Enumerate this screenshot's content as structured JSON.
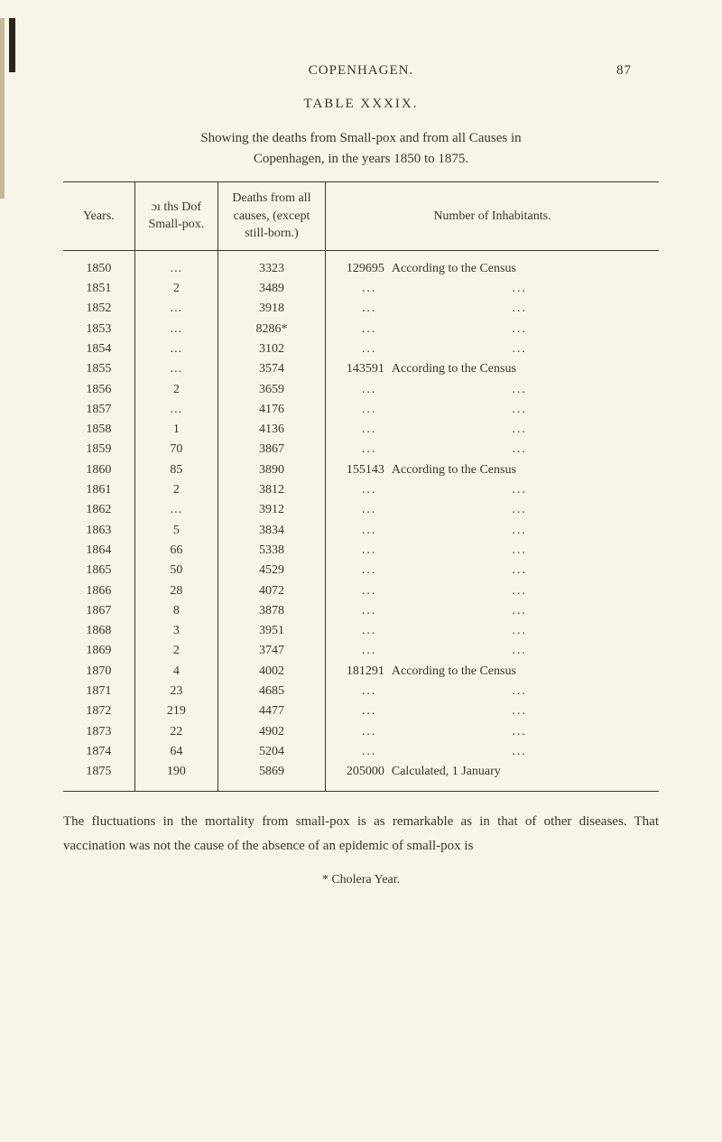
{
  "header": {
    "title": "COPENHAGEN.",
    "pageNumber": "87"
  },
  "tableTitle": "TABLE XXXIX.",
  "description": {
    "line1": "Showing the deaths from Small-pox and from all Causes in",
    "line2": "Copenhagen, in the years 1850 to 1875."
  },
  "columns": {
    "years": "Years.",
    "deathsSmallpox": "ɔı ths Dof Small-pox.",
    "deathsAll": "Deaths from all causes, (except still-born.)",
    "inhabitants": "Number of Inhabitants."
  },
  "rows": [
    {
      "year": "1850",
      "sp": "...",
      "all": "3323",
      "inhab_num": "129695",
      "inhab_text": "According to the Census"
    },
    {
      "year": "1851",
      "sp": "2",
      "all": "3489",
      "inhab_num": "",
      "inhab_text": "dots"
    },
    {
      "year": "1852",
      "sp": "...",
      "all": "3918",
      "inhab_num": "",
      "inhab_text": "dots"
    },
    {
      "year": "1853",
      "sp": "...",
      "all": "8286*",
      "inhab_num": "",
      "inhab_text": "dots"
    },
    {
      "year": "1854",
      "sp": "...",
      "all": "3102",
      "inhab_num": "",
      "inhab_text": "dots"
    },
    {
      "year": "1855",
      "sp": "...",
      "all": "3574",
      "inhab_num": "143591",
      "inhab_text": "According to the Census"
    },
    {
      "year": "1856",
      "sp": "2",
      "all": "3659",
      "inhab_num": "",
      "inhab_text": "dots"
    },
    {
      "year": "1857",
      "sp": "...",
      "all": "4176",
      "inhab_num": "",
      "inhab_text": "dots"
    },
    {
      "year": "1858",
      "sp": "1",
      "all": "4136",
      "inhab_num": "",
      "inhab_text": "dots"
    },
    {
      "year": "1859",
      "sp": "70",
      "all": "3867",
      "inhab_num": "",
      "inhab_text": "dots"
    },
    {
      "year": "1860",
      "sp": "85",
      "all": "3890",
      "inhab_num": "155143",
      "inhab_text": "According to the Census"
    },
    {
      "year": "1861",
      "sp": "2",
      "all": "3812",
      "inhab_num": "",
      "inhab_text": "dots"
    },
    {
      "year": "1862",
      "sp": "...",
      "all": "3912",
      "inhab_num": "",
      "inhab_text": "dots"
    },
    {
      "year": "1863",
      "sp": "5",
      "all": "3834",
      "inhab_num": "",
      "inhab_text": "dots"
    },
    {
      "year": "1864",
      "sp": "66",
      "all": "5338",
      "inhab_num": "",
      "inhab_text": "dots"
    },
    {
      "year": "1865",
      "sp": "50",
      "all": "4529",
      "inhab_num": "",
      "inhab_text": "dots"
    },
    {
      "year": "1866",
      "sp": "28",
      "all": "4072",
      "inhab_num": "",
      "inhab_text": "dots"
    },
    {
      "year": "1867",
      "sp": "8",
      "all": "3878",
      "inhab_num": "",
      "inhab_text": "dots"
    },
    {
      "year": "1868",
      "sp": "3",
      "all": "3951",
      "inhab_num": "",
      "inhab_text": "dots"
    },
    {
      "year": "1869",
      "sp": "2",
      "all": "3747",
      "inhab_num": "",
      "inhab_text": "dots"
    },
    {
      "year": "1870",
      "sp": "4",
      "all": "4002",
      "inhab_num": "181291",
      "inhab_text": "According to the Census"
    },
    {
      "year": "1871",
      "sp": "23",
      "all": "4685",
      "inhab_num": "",
      "inhab_text": "dots"
    },
    {
      "year": "1872",
      "sp": "219",
      "all": "4477",
      "inhab_num": "",
      "inhab_text": "dots"
    },
    {
      "year": "1873",
      "sp": "22",
      "all": "4902",
      "inhab_num": "",
      "inhab_text": "dots"
    },
    {
      "year": "1874",
      "sp": "64",
      "all": "5204",
      "inhab_num": "",
      "inhab_text": "dots"
    },
    {
      "year": "1875",
      "sp": "190",
      "all": "5869",
      "inhab_num": "205000",
      "inhab_text": "Calculated, 1 January"
    }
  ],
  "footerText": "The fluctuations in the mortality from small-pox is as remarkable as in that of other diseases. That vaccination was not the cause of the absence of an epidemic of small-pox is",
  "footnote": "* Cholera Year.",
  "styling": {
    "backgroundColor": "#f8f5e8",
    "textColor": "#3a3528",
    "borderColor": "#3a3528",
    "pageWidth": 800,
    "pageHeight": 1265,
    "bodyFontSize": 15,
    "tableFontSize": 14,
    "fontFamily": "Georgia, Times New Roman, serif"
  }
}
